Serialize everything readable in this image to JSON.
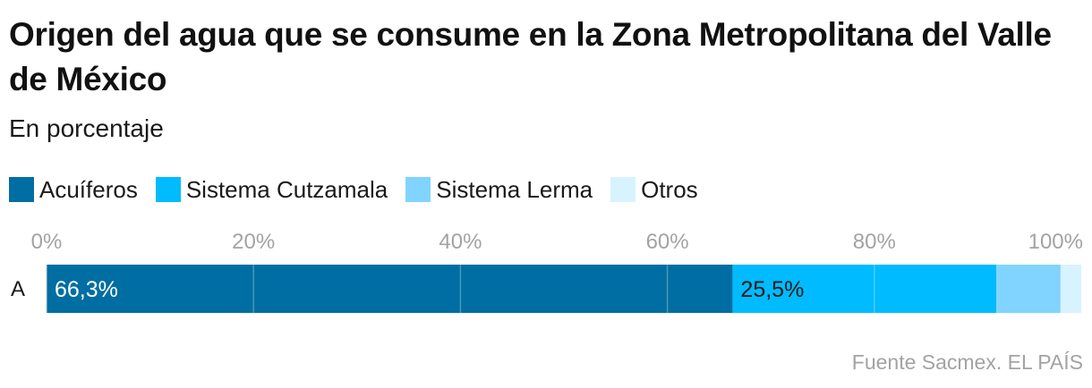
{
  "title": "Origen del agua que se consume en la Zona Metropolitana del Valle de México",
  "subtitle": "En porcentaje",
  "source": "Fuente Sacmex. EL PAÍS",
  "legend": [
    {
      "label": "Acuíferos",
      "color": "#006ea2"
    },
    {
      "label": "Sistema Cutzamala",
      "color": "#00bbff"
    },
    {
      "label": "Sistema Lerma",
      "color": "#80d4ff"
    },
    {
      "label": "Otros",
      "color": "#d7f3ff"
    }
  ],
  "chart_data": {
    "type": "bar",
    "orientation": "horizontal",
    "stacked": true,
    "categories": [
      "A"
    ],
    "xlim": [
      0,
      100
    ],
    "xticks": [
      "0%",
      "20%",
      "40%",
      "60%",
      "80%",
      "100%"
    ],
    "tick_values": [
      0,
      20,
      40,
      60,
      80,
      100
    ],
    "grid": true,
    "legend_position": "top-left",
    "series": [
      {
        "name": "Acuíferos",
        "values": [
          66.3
        ],
        "label": "66,3%",
        "color": "#006ea2",
        "label_color": "#ffffff"
      },
      {
        "name": "Sistema Cutzamala",
        "values": [
          25.5
        ],
        "label": "25,5%",
        "color": "#00bbff",
        "label_color": "#1a1a1a"
      },
      {
        "name": "Sistema Lerma",
        "values": [
          6.2
        ],
        "label": "",
        "color": "#80d4ff",
        "label_color": "#1a1a1a"
      },
      {
        "name": "Otros",
        "values": [
          2.0
        ],
        "label": "",
        "color": "#d7f3ff",
        "label_color": "#1a1a1a"
      }
    ]
  }
}
